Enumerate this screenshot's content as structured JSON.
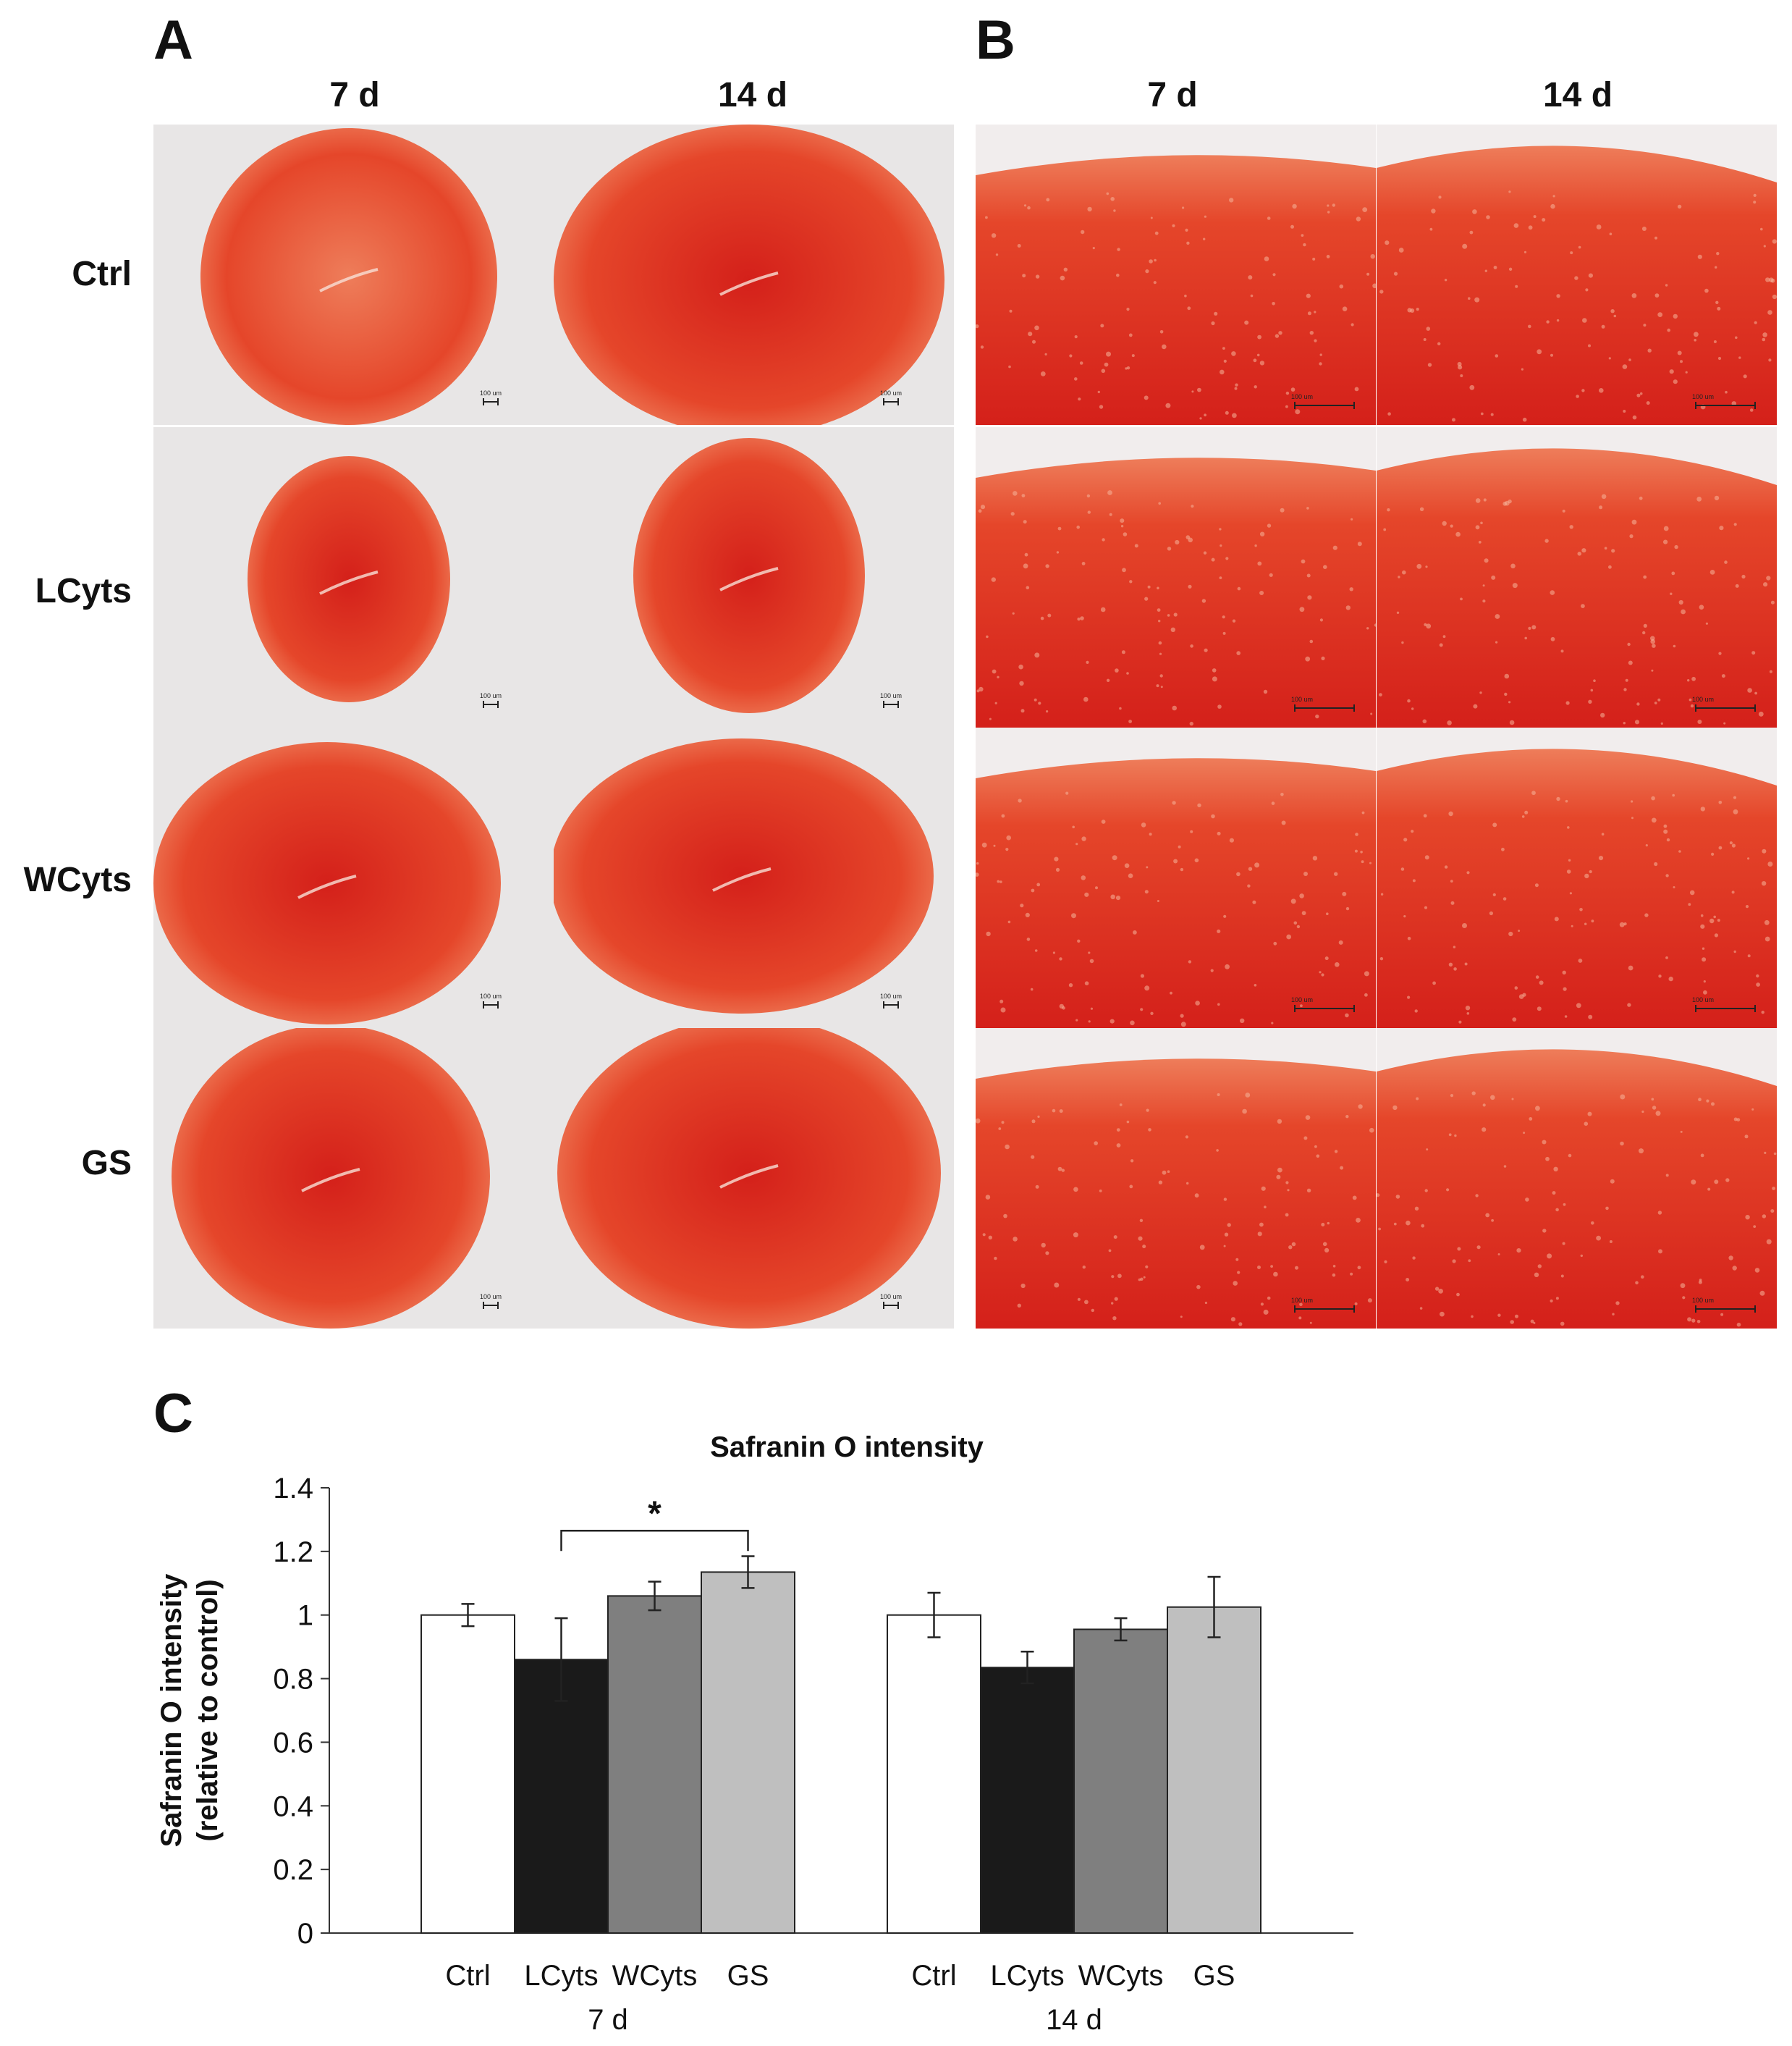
{
  "panels": {
    "a_label": "A",
    "b_label": "B",
    "c_label": "C"
  },
  "columns": {
    "day7": "7 d",
    "day14": "14 d"
  },
  "rows": [
    "Ctrl",
    "LCyts",
    "WCyts",
    "GS"
  ],
  "scale_labels": {
    "a": "100 um",
    "b": "100 um"
  },
  "colors": {
    "stain_dark": "#d4201a",
    "stain_mid": "#e5462a",
    "stain_light": "#ee7d5a",
    "background_a": "#e8e6e6",
    "background_b": "#f1eded",
    "bar_ctrl": "#ffffff",
    "bar_lcyts": "#1a1a1a",
    "bar_wcyts": "#7f7f7f",
    "bar_gs": "#bfbfbf"
  },
  "chart_data": {
    "type": "bar",
    "title": "Safranin O intensity",
    "ylabel": "Safranin O intensity",
    "ylabel2": "(relative to control)",
    "ylim": [
      0,
      1.4
    ],
    "yticks": [
      "0",
      "0.2",
      "0.4",
      "0.6",
      "0.8",
      "1",
      "1.2",
      "1.4"
    ],
    "ytick_values": [
      0,
      0.2,
      0.4,
      0.6,
      0.8,
      1.0,
      1.2,
      1.4
    ],
    "groups": [
      "7 d",
      "14 d"
    ],
    "categories": [
      "Ctrl",
      "LCyts",
      "WCyts",
      "GS"
    ],
    "series": [
      {
        "group": "7 d",
        "values": [
          1.0,
          0.86,
          1.06,
          1.135
        ],
        "errors": [
          0.035,
          0.13,
          0.045,
          0.05
        ]
      },
      {
        "group": "14 d",
        "values": [
          1.0,
          0.835,
          0.955,
          1.025
        ],
        "errors": [
          0.07,
          0.05,
          0.035,
          0.095
        ]
      }
    ],
    "significance": {
      "group": "7 d",
      "from": "LCyts",
      "to": "GS",
      "label": "*"
    },
    "grid": false,
    "legend": "none"
  }
}
